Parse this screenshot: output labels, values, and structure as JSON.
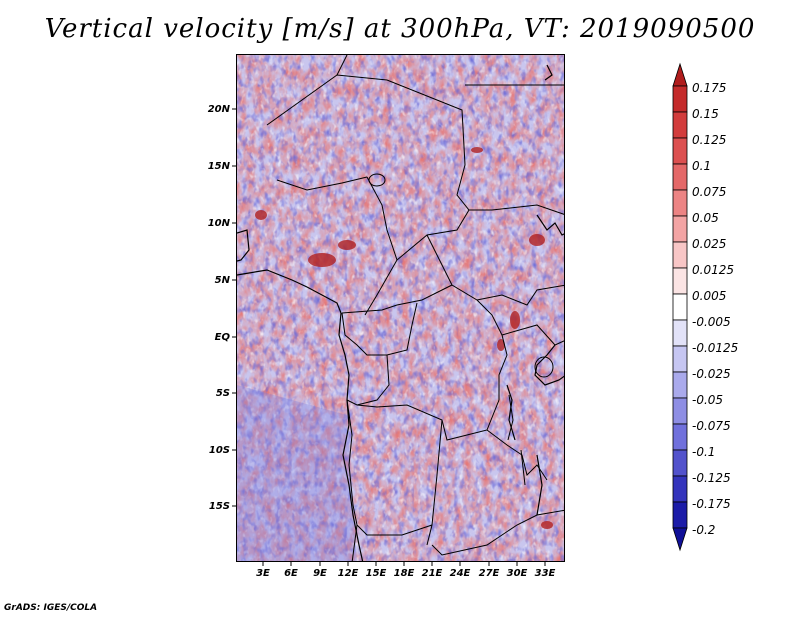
{
  "title": "Vertical velocity [m/s] at 300hPa, VT: 2019090500",
  "footer": "GrADS: IGES/COLA",
  "y_ticks": [
    "20N",
    "15N",
    "10N",
    "5N",
    "EQ",
    "5S",
    "10S",
    "15S"
  ],
  "x_ticks": [
    "3E",
    "6E",
    "9E",
    "12E",
    "15E",
    "18E",
    "21E",
    "24E",
    "27E",
    "30E",
    "33E"
  ],
  "colorbar": {
    "labels": [
      "0.175",
      "0.15",
      "0.125",
      "0.1",
      "0.075",
      "0.05",
      "0.025",
      "0.0125",
      "0.005",
      "-0.005",
      "-0.0125",
      "-0.025",
      "-0.05",
      "-0.075",
      "-0.1",
      "-0.125",
      "-0.175",
      "-0.2"
    ],
    "colors": [
      "#b01c1c",
      "#c42a2a",
      "#d23c3c",
      "#dc5050",
      "#e46868",
      "#ec8484",
      "#f3a4a4",
      "#f8c6c6",
      "#fbe4e4",
      "#ffffff",
      "#e2e2f8",
      "#c6c6f2",
      "#aaaaec",
      "#8e8ee4",
      "#7070dc",
      "#5252cc",
      "#3434bc",
      "#1c1ca8",
      "#101098"
    ]
  }
}
